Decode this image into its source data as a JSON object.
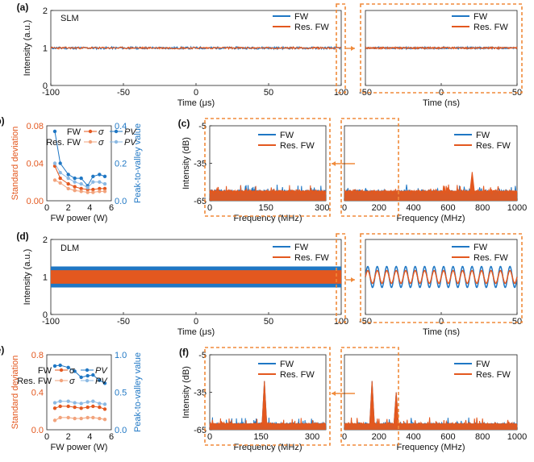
{
  "colors": {
    "fw": "#1f77c4",
    "res": "#e3581f",
    "fw_light": "#8bb9e3",
    "res_light": "#f2a37c",
    "frame": "#f08a3a"
  },
  "panel_labels": {
    "a": "(a)",
    "b": "(b)",
    "c": "(c)",
    "d": "(d)",
    "e": "(e)",
    "f": "(f)"
  },
  "mode_labels": {
    "a": "SLM",
    "d": "DLM"
  },
  "legend": {
    "fw": "FW",
    "res": "Res. FW"
  },
  "legend_small": {
    "fw": "FW",
    "res": "Res. FW",
    "sigma": "σ",
    "pv": "PV"
  },
  "chart_data": [
    {
      "id": "a_left",
      "type": "line",
      "panel": "(a)",
      "xlabel": "Time (μs)",
      "ylabel": "Intensity (a.u.)",
      "xlim": [
        -100,
        100
      ],
      "ylim": [
        0,
        2
      ],
      "xticks": [
        -100,
        -50,
        0,
        50,
        100
      ],
      "yticks": [
        0,
        1,
        2
      ],
      "series": [
        {
          "name": "FW",
          "mean": 1.0,
          "noise_amplitude": 0.03
        },
        {
          "name": "Res. FW",
          "mean": 1.0,
          "noise_amplitude": 0.025
        }
      ]
    },
    {
      "id": "a_right",
      "type": "line",
      "panel": "(a)",
      "xlabel": "Time (ns)",
      "ylabel": "",
      "xlim": [
        -50,
        50
      ],
      "ylim": [
        0,
        2
      ],
      "xticks": [
        -50,
        0,
        50
      ],
      "series": [
        {
          "name": "FW",
          "mean": 1.0,
          "noise_amplitude": 0.02
        },
        {
          "name": "Res. FW",
          "mean": 1.0,
          "noise_amplitude": 0.02
        }
      ]
    },
    {
      "id": "b",
      "type": "line",
      "panel": "(b)",
      "xlabel": "FW power (W)",
      "ylabel": "Standard deviation",
      "y2label": "Peak-to-valley value",
      "xlim": [
        0,
        6
      ],
      "ylim": [
        0,
        0.08
      ],
      "y2lim": [
        0,
        0.4
      ],
      "xticks": [
        0,
        2,
        4,
        6
      ],
      "yticks": [
        0,
        0.04,
        0.08
      ],
      "y2ticks": [
        0,
        0.2,
        0.4
      ],
      "x": [
        0.75,
        1.25,
        2.0,
        2.6,
        3.2,
        3.8,
        4.3,
        4.9,
        5.4
      ],
      "series": [
        {
          "name": "FW σ",
          "axis": "left",
          "color": "res",
          "values": [
            0.037,
            0.024,
            0.018,
            0.015,
            0.013,
            0.012,
            0.012,
            0.013,
            0.013
          ]
        },
        {
          "name": "Res. FW σ",
          "axis": "left",
          "color": "res_light",
          "values": [
            0.022,
            0.019,
            0.013,
            0.011,
            0.01,
            0.009,
            0.009,
            0.01,
            0.01
          ]
        },
        {
          "name": "FW PV",
          "axis": "right",
          "color": "fw",
          "values": [
            0.37,
            0.2,
            0.14,
            0.12,
            0.12,
            0.08,
            0.13,
            0.14,
            0.13
          ]
        },
        {
          "name": "Res. FW PV",
          "axis": "right",
          "color": "fw_light",
          "values": [
            0.2,
            0.15,
            0.12,
            0.1,
            0.09,
            0.07,
            0.1,
            0.1,
            0.09
          ]
        }
      ]
    },
    {
      "id": "c_left",
      "type": "line",
      "panel": "(c)",
      "xlabel": "Frequency (MHz)",
      "ylabel": "Intensity (dB)",
      "xlim": [
        0,
        310
      ],
      "ylim": [
        -65,
        -5
      ],
      "xticks": [
        0,
        150,
        300
      ],
      "yticks": [
        -65,
        -35,
        -5
      ],
      "series": [
        {
          "name": "FW",
          "floor": -59,
          "peaks": []
        },
        {
          "name": "Res. FW",
          "floor": -59,
          "peaks": []
        }
      ]
    },
    {
      "id": "c_right",
      "type": "line",
      "panel": "(c)",
      "xlabel": "Frequency (MHz)",
      "ylabel": "",
      "xlim": [
        0,
        1000
      ],
      "ylim": [
        -65,
        -5
      ],
      "xticks": [
        0,
        200,
        400,
        600,
        800,
        1000
      ],
      "series": [
        {
          "name": "FW",
          "floor": -59,
          "peaks": []
        },
        {
          "name": "Res. FW",
          "floor": -59,
          "peaks": [
            [
              740,
              -42
            ]
          ]
        }
      ]
    },
    {
      "id": "d_left",
      "type": "line",
      "panel": "(d)",
      "xlabel": "Time (μs)",
      "ylabel": "Intensity (a.u.)",
      "xlim": [
        -100,
        100
      ],
      "ylim": [
        0,
        2
      ],
      "xticks": [
        -100,
        -50,
        0,
        50,
        100
      ],
      "yticks": [
        0,
        1,
        2
      ],
      "series": [
        {
          "name": "FW",
          "min": 0.72,
          "max": 1.28
        },
        {
          "name": "Res. FW",
          "min": 0.82,
          "max": 1.18
        }
      ]
    },
    {
      "id": "d_right",
      "type": "line",
      "panel": "(d)",
      "xlabel": "Time (ns)",
      "ylabel": "",
      "xlim": [
        -50,
        50
      ],
      "ylim": [
        0,
        2
      ],
      "xticks": [
        -50,
        0,
        50
      ],
      "series": [
        {
          "name": "FW",
          "mean": 1.0,
          "amplitude": 0.28,
          "period_ns": 6.25
        },
        {
          "name": "Res. FW",
          "mean": 1.0,
          "amplitude": 0.17,
          "period_ns": 6.25
        }
      ]
    },
    {
      "id": "e",
      "type": "line",
      "panel": "(e)",
      "xlabel": "FW power (W)",
      "ylabel": "Standard deviation",
      "y2label": "Peak-to-valley value",
      "xlim": [
        0,
        6
      ],
      "ylim": [
        0,
        0.8
      ],
      "y2lim": [
        0,
        1.0
      ],
      "xticks": [
        0,
        2,
        4,
        6
      ],
      "yticks": [
        0,
        0.4,
        0.8
      ],
      "y2ticks": [
        0,
        0.5,
        1.0
      ],
      "x": [
        0.75,
        1.25,
        2.0,
        2.6,
        3.2,
        3.8,
        4.3,
        4.9,
        5.4
      ],
      "series": [
        {
          "name": "FW σ",
          "axis": "left",
          "color": "res",
          "values": [
            0.23,
            0.25,
            0.25,
            0.24,
            0.23,
            0.24,
            0.25,
            0.24,
            0.22
          ]
        },
        {
          "name": "Res. FW σ",
          "axis": "left",
          "color": "res_light",
          "values": [
            0.1,
            0.13,
            0.13,
            0.12,
            0.12,
            0.13,
            0.13,
            0.12,
            0.11
          ]
        },
        {
          "name": "FW PV",
          "axis": "right",
          "color": "fw",
          "values": [
            0.85,
            0.86,
            0.83,
            0.78,
            0.7,
            0.72,
            0.73,
            0.66,
            0.62
          ]
        },
        {
          "name": "Res. FW PV",
          "axis": "right",
          "color": "fw_light",
          "values": [
            0.36,
            0.38,
            0.38,
            0.36,
            0.35,
            0.37,
            0.38,
            0.35,
            0.34
          ]
        }
      ]
    },
    {
      "id": "f_left",
      "type": "line",
      "panel": "(f)",
      "xlabel": "Frequency (MHz)",
      "ylabel": "Intensity (dB)",
      "xlim": [
        0,
        340
      ],
      "ylim": [
        -65,
        -5
      ],
      "xticks": [
        0,
        150,
        300
      ],
      "yticks": [
        -65,
        -35,
        -5
      ],
      "series": [
        {
          "name": "FW",
          "floor": -62,
          "peaks": [
            [
              160,
              -26
            ]
          ]
        },
        {
          "name": "Res. FW",
          "floor": -62,
          "peaks": [
            [
              160,
              -26
            ]
          ]
        }
      ]
    },
    {
      "id": "f_right",
      "type": "line",
      "panel": "(f)",
      "xlabel": "Frequency (MHz)",
      "ylabel": "",
      "xlim": [
        0,
        1000
      ],
      "ylim": [
        -65,
        -5
      ],
      "xticks": [
        0,
        200,
        400,
        600,
        800,
        1000
      ],
      "series": [
        {
          "name": "FW",
          "floor": -62,
          "peaks": [
            [
              160,
              -26
            ],
            [
              300,
              -35
            ]
          ]
        },
        {
          "name": "Res. FW",
          "floor": -62,
          "peaks": [
            [
              160,
              -26
            ],
            [
              300,
              -35
            ]
          ]
        }
      ]
    }
  ]
}
